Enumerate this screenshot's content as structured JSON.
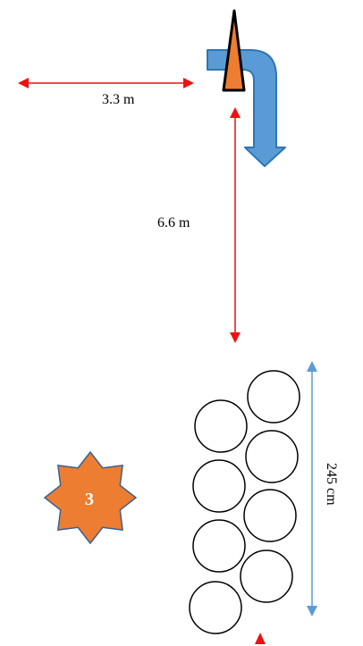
{
  "measurements": {
    "horizontal_distance": "3.3 m",
    "vertical_distance": "6.6 m",
    "stack_height": "245 cm"
  },
  "marker": {
    "number": "3"
  },
  "colors": {
    "arrow_red": "#ee1111",
    "blue_arrow": "#5b9bd5",
    "blue_arrow_outline": "#2e75b6",
    "orange": "#ed7d31",
    "circle_stroke": "#000000"
  },
  "icons": {
    "turn_arrow": "u-turn-down-arrow-icon",
    "pointer": "orange-triangle-pointer-icon",
    "marker": "eight-point-star-icon"
  }
}
